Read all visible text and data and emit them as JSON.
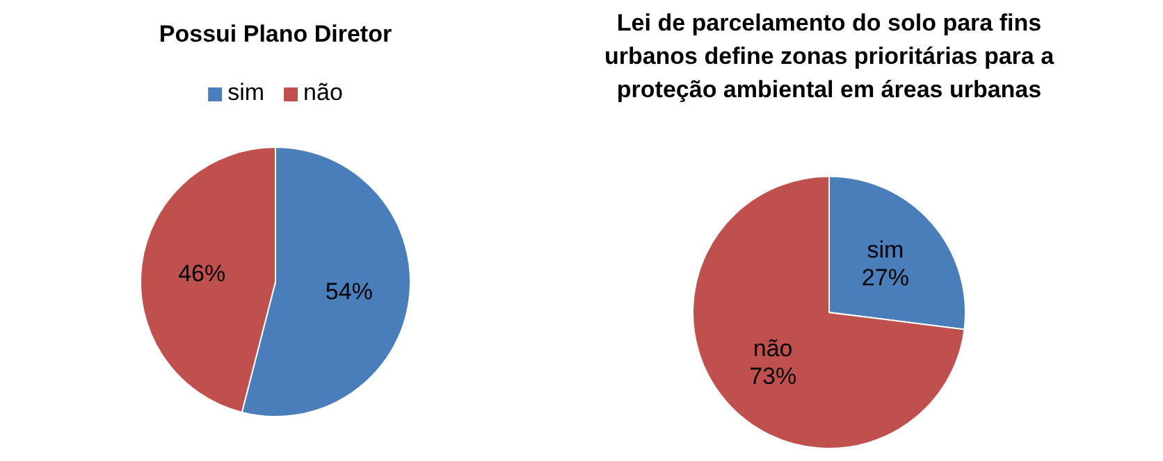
{
  "chart_data": [
    {
      "type": "pie",
      "title": "Possui Plano Diretor",
      "categories": [
        "sim",
        "não"
      ],
      "values": [
        54,
        46
      ],
      "colors": [
        "#4a7ebb",
        "#c0504d"
      ],
      "value_labels": [
        "54%",
        "46%"
      ],
      "legend": "top"
    },
    {
      "type": "pie",
      "title": "Lei de parcelamento do solo para fins urbanos define zonas prioritárias para a proteção ambiental em áreas urbanas",
      "categories": [
        "sim",
        "não"
      ],
      "values": [
        27,
        73
      ],
      "colors": [
        "#4a7ebb",
        "#c0504d"
      ],
      "value_labels": [
        "27%",
        "73%"
      ],
      "legend": false
    }
  ]
}
